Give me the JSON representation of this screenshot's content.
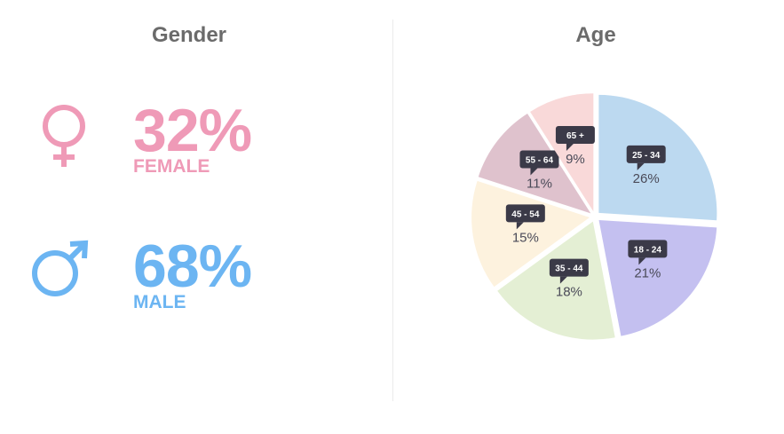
{
  "gender": {
    "title": "Gender",
    "female": {
      "percent": "32%",
      "label": "FEMALE",
      "color": "#ef9ab7",
      "icon": "female-symbol-icon"
    },
    "male": {
      "percent": "68%",
      "label": "MALE",
      "color": "#6cb5f2",
      "icon": "male-symbol-icon"
    }
  },
  "age": {
    "title": "Age"
  },
  "chart_data": [
    {
      "type": "table",
      "title": "Gender",
      "categories": [
        "FEMALE",
        "MALE"
      ],
      "values": [
        32,
        68
      ]
    },
    {
      "type": "pie",
      "title": "Age",
      "categories": [
        "25 - 34",
        "18 - 24",
        "35 - 44",
        "45 - 54",
        "55 - 64",
        "65 +"
      ],
      "values": [
        26,
        21,
        18,
        15,
        11,
        9
      ],
      "value_labels": [
        "26%",
        "21%",
        "18%",
        "15%",
        "11%",
        "9%"
      ],
      "colors": [
        "#bcd9f0",
        "#c4c0f0",
        "#e4efd4",
        "#fdf2de",
        "#dfc2cd",
        "#f9d9d9"
      ],
      "tag_color": "#3b3a48"
    }
  ]
}
